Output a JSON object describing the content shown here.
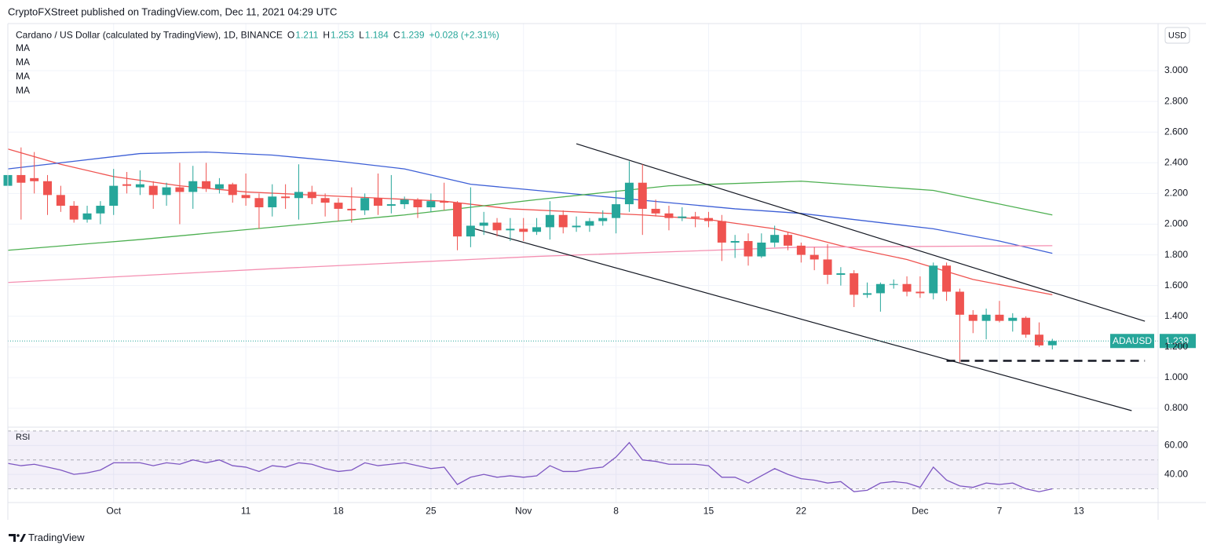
{
  "chart_data": {
    "type": "candlestick",
    "published": "CryptoFXStreet published on TradingView.com, Dec 11, 2021 04:29 UTC",
    "title": "Cardano / US Dollar (calculated by TradingView), 1D, BINANCE",
    "ohlc_letters": [
      "O",
      "H",
      "L",
      "C"
    ],
    "change_label": "+0.028 (+2.31%)",
    "symbol": "ADAUSD",
    "currency": "USD",
    "brand": "TradingView",
    "up_color": "#26a69a",
    "down_color": "#ef5350",
    "x": [
      "2021-09-23",
      "2021-09-24",
      "2021-09-25",
      "2021-09-26",
      "2021-09-27",
      "2021-09-28",
      "2021-09-29",
      "2021-09-30",
      "2021-10-01",
      "2021-10-02",
      "2021-10-03",
      "2021-10-04",
      "2021-10-05",
      "2021-10-06",
      "2021-10-07",
      "2021-10-08",
      "2021-10-09",
      "2021-10-10",
      "2021-10-11",
      "2021-10-12",
      "2021-10-13",
      "2021-10-14",
      "2021-10-15",
      "2021-10-16",
      "2021-10-17",
      "2021-10-18",
      "2021-10-19",
      "2021-10-20",
      "2021-10-21",
      "2021-10-22",
      "2021-10-23",
      "2021-10-24",
      "2021-10-25",
      "2021-10-26",
      "2021-10-27",
      "2021-10-28",
      "2021-10-29",
      "2021-10-30",
      "2021-10-31",
      "2021-11-01",
      "2021-11-02",
      "2021-11-03",
      "2021-11-04",
      "2021-11-05",
      "2021-11-06",
      "2021-11-07",
      "2021-11-08",
      "2021-11-09",
      "2021-11-10",
      "2021-11-11",
      "2021-11-12",
      "2021-11-13",
      "2021-11-14",
      "2021-11-15",
      "2021-11-16",
      "2021-11-17",
      "2021-11-18",
      "2021-11-19",
      "2021-11-20",
      "2021-11-21",
      "2021-11-22",
      "2021-11-23",
      "2021-11-24",
      "2021-11-25",
      "2021-11-26",
      "2021-11-27",
      "2021-11-28",
      "2021-11-29",
      "2021-11-30",
      "2021-12-01",
      "2021-12-02",
      "2021-12-03",
      "2021-12-04",
      "2021-12-05",
      "2021-12-06",
      "2021-12-07",
      "2021-12-08",
      "2021-12-09",
      "2021-12-10",
      "2021-12-11"
    ],
    "open": [
      2.25,
      2.32,
      2.3,
      2.28,
      2.19,
      2.12,
      2.03,
      2.07,
      2.12,
      2.26,
      2.24,
      2.25,
      2.19,
      2.24,
      2.21,
      2.28,
      2.23,
      2.26,
      2.19,
      2.17,
      2.11,
      2.18,
      2.17,
      2.21,
      2.17,
      2.14,
      2.1,
      2.09,
      2.17,
      2.12,
      2.13,
      2.16,
      2.11,
      2.15,
      2.14,
      1.92,
      1.99,
      2.01,
      1.96,
      1.97,
      1.95,
      1.98,
      2.06,
      1.98,
      1.99,
      2.02,
      2.04,
      2.13,
      2.27,
      2.1,
      2.07,
      2.04,
      2.05,
      2.04,
      2.02,
      1.88,
      1.89,
      1.79,
      1.88,
      1.93,
      1.86,
      1.8,
      1.77,
      1.67,
      1.68,
      1.54,
      1.55,
      1.61,
      1.61,
      1.56,
      1.55,
      1.73,
      1.56,
      1.41,
      1.37,
      1.41,
      1.37,
      1.39,
      1.28,
      1.211
    ],
    "high": [
      2.36,
      2.5,
      2.47,
      2.32,
      2.25,
      2.15,
      2.12,
      2.15,
      2.36,
      2.34,
      2.35,
      2.28,
      2.27,
      2.4,
      2.38,
      2.4,
      2.3,
      2.27,
      2.33,
      2.2,
      2.26,
      2.26,
      2.39,
      2.25,
      2.2,
      2.17,
      2.24,
      2.2,
      2.33,
      2.32,
      2.18,
      2.17,
      2.2,
      2.27,
      2.15,
      2.24,
      2.08,
      2.04,
      2.04,
      2.04,
      2.04,
      2.15,
      2.09,
      2.05,
      2.04,
      2.09,
      2.22,
      2.41,
      2.39,
      2.16,
      2.12,
      2.11,
      2.08,
      2.08,
      2.06,
      1.93,
      1.94,
      1.94,
      1.99,
      1.95,
      1.88,
      1.85,
      1.87,
      1.72,
      1.7,
      1.62,
      1.62,
      1.64,
      1.66,
      1.66,
      1.75,
      1.75,
      1.58,
      1.44,
      1.45,
      1.5,
      1.42,
      1.4,
      1.36,
      1.253
    ],
    "low": [
      2.16,
      2.03,
      2.2,
      2.06,
      2.08,
      2.01,
      2.01,
      2.0,
      2.06,
      2.2,
      2.19,
      2.1,
      2.12,
      2.0,
      2.1,
      2.21,
      2.2,
      2.14,
      2.12,
      1.97,
      2.05,
      2.1,
      2.03,
      2.13,
      2.05,
      2.02,
      2.01,
      2.06,
      2.06,
      2.07,
      2.1,
      2.04,
      2.08,
      2.09,
      1.83,
      1.85,
      1.93,
      1.92,
      1.89,
      1.89,
      1.93,
      1.9,
      1.94,
      1.95,
      1.95,
      1.99,
      1.94,
      2.08,
      1.93,
      2.05,
      1.96,
      2.02,
      1.98,
      1.98,
      1.76,
      1.78,
      1.73,
      1.78,
      1.85,
      1.83,
      1.75,
      1.7,
      1.61,
      1.6,
      1.46,
      1.52,
      1.43,
      1.58,
      1.53,
      1.52,
      1.51,
      1.5,
      1.1,
      1.29,
      1.25,
      1.36,
      1.3,
      1.26,
      1.2,
      1.184
    ],
    "close": [
      2.32,
      2.27,
      2.28,
      2.19,
      2.12,
      2.03,
      2.07,
      2.12,
      2.25,
      2.25,
      2.26,
      2.19,
      2.24,
      2.21,
      2.28,
      2.23,
      2.26,
      2.19,
      2.17,
      2.11,
      2.18,
      2.17,
      2.21,
      2.17,
      2.14,
      2.1,
      2.09,
      2.17,
      2.12,
      2.13,
      2.16,
      2.11,
      2.15,
      2.14,
      1.92,
      1.99,
      2.01,
      1.96,
      1.97,
      1.95,
      1.98,
      2.06,
      1.98,
      1.99,
      2.02,
      2.04,
      2.13,
      2.27,
      2.1,
      2.07,
      2.04,
      2.05,
      2.04,
      2.02,
      1.88,
      1.89,
      1.79,
      1.88,
      1.93,
      1.86,
      1.8,
      1.77,
      1.67,
      1.68,
      1.54,
      1.55,
      1.61,
      1.61,
      1.56,
      1.55,
      1.73,
      1.56,
      1.41,
      1.37,
      1.41,
      1.37,
      1.39,
      1.28,
      1.21,
      1.239
    ],
    "xlim": [
      "2021-09-23",
      "2021-12-19"
    ],
    "xticks": [
      {
        "value": "2021-10-01",
        "label": "Oct"
      },
      {
        "value": "2021-10-11",
        "label": "11"
      },
      {
        "value": "2021-10-18",
        "label": "18"
      },
      {
        "value": "2021-10-25",
        "label": "25"
      },
      {
        "value": "2021-11-01",
        "label": "Nov"
      },
      {
        "value": "2021-11-08",
        "label": "8"
      },
      {
        "value": "2021-11-15",
        "label": "15"
      },
      {
        "value": "2021-11-22",
        "label": "22"
      },
      {
        "value": "2021-12-01",
        "label": "Dec"
      },
      {
        "value": "2021-12-07",
        "label": "7"
      },
      {
        "value": "2021-12-13",
        "label": "13"
      }
    ],
    "ylim": [
      0.698,
      3.307
    ],
    "yticks": [
      {
        "value": 0.8,
        "label": "0.800"
      },
      {
        "value": 1.0,
        "label": "1.000"
      },
      {
        "value": 1.2,
        "label": "1.200"
      },
      {
        "value": 1.4,
        "label": "1.400"
      },
      {
        "value": 1.6,
        "label": "1.600"
      },
      {
        "value": 1.8,
        "label": "1.800"
      },
      {
        "value": 2.0,
        "label": "2.000"
      },
      {
        "value": 2.2,
        "label": "2.200"
      },
      {
        "value": 2.4,
        "label": "2.400"
      },
      {
        "value": 2.6,
        "label": "2.600"
      },
      {
        "value": 2.8,
        "label": "2.800"
      },
      {
        "value": 3.0,
        "label": "3.000"
      }
    ],
    "grid": true,
    "series": [
      {
        "name": "MA",
        "color": "#ef5350",
        "x": [
          "2021-09-23",
          "2021-09-27",
          "2021-10-01",
          "2021-10-06",
          "2021-10-11",
          "2021-10-16",
          "2021-10-21",
          "2021-10-26",
          "2021-10-31",
          "2021-11-05",
          "2021-11-10",
          "2021-11-15",
          "2021-11-20",
          "2021-11-25",
          "2021-11-30",
          "2021-12-05",
          "2021-12-11"
        ],
        "values": [
          2.49,
          2.39,
          2.31,
          2.25,
          2.21,
          2.19,
          2.17,
          2.15,
          2.1,
          2.08,
          2.06,
          2.03,
          1.97,
          1.86,
          1.77,
          1.64,
          1.54
        ]
      },
      {
        "name": "MA",
        "color": "#3d5fd6",
        "x": [
          "2021-09-23",
          "2021-09-28",
          "2021-10-03",
          "2021-10-08",
          "2021-10-13",
          "2021-10-18",
          "2021-10-23",
          "2021-10-28",
          "2021-11-02",
          "2021-11-07",
          "2021-11-12",
          "2021-11-17",
          "2021-11-22",
          "2021-11-27",
          "2021-12-02",
          "2021-12-07",
          "2021-12-11"
        ],
        "values": [
          2.36,
          2.41,
          2.46,
          2.47,
          2.45,
          2.41,
          2.36,
          2.26,
          2.22,
          2.18,
          2.14,
          2.1,
          2.07,
          2.02,
          1.97,
          1.89,
          1.81
        ]
      },
      {
        "name": "MA",
        "color": "#4caf50",
        "x": [
          "2021-09-23",
          "2021-10-03",
          "2021-10-13",
          "2021-10-23",
          "2021-11-02",
          "2021-11-12",
          "2021-11-22",
          "2021-12-02",
          "2021-12-11"
        ],
        "values": [
          1.83,
          1.9,
          1.98,
          2.06,
          2.16,
          2.25,
          2.28,
          2.22,
          2.06
        ]
      },
      {
        "name": "MA",
        "color": "#f48fb1",
        "x": [
          "2021-09-23",
          "2021-10-13",
          "2021-11-02",
          "2021-11-22",
          "2021-12-11"
        ],
        "values": [
          1.62,
          1.71,
          1.79,
          1.85,
          1.86
        ]
      }
    ],
    "trendlines": [
      {
        "x": [
          "2021-11-05",
          "2021-12-18"
        ],
        "values": [
          2.524,
          1.368
        ],
        "color": "#131722"
      },
      {
        "x": [
          "2021-10-28",
          "2021-12-17"
        ],
        "values": [
          1.977,
          0.785
        ],
        "color": "#131722"
      }
    ],
    "levels": [
      {
        "x": [
          "2021-12-03",
          "2021-12-18"
        ],
        "values": [
          1.11,
          1.11
        ],
        "color": "#131722",
        "dashed": true
      }
    ],
    "rsi": {
      "title": "RSI",
      "color": "#7e57c2",
      "values": [
        47.6,
        46,
        47,
        45,
        43,
        40,
        41,
        43,
        48,
        48,
        48,
        46,
        48,
        47,
        50,
        48,
        50,
        46,
        45,
        42,
        46,
        45,
        48,
        47,
        44,
        42,
        43,
        48,
        46,
        47,
        48,
        46,
        44,
        45,
        33,
        38,
        40,
        38,
        39,
        38,
        39,
        46,
        42,
        42,
        44,
        45,
        52,
        62,
        50,
        49,
        47,
        47,
        47,
        46,
        38,
        38,
        34,
        39,
        44,
        40,
        37,
        36,
        34,
        35,
        28,
        29,
        34,
        35,
        34,
        31,
        45,
        36,
        32,
        31,
        34,
        33,
        34,
        30,
        28,
        30
      ],
      "ylim": [
        20.5,
        70.5
      ],
      "yticks": [
        {
          "value": 40,
          "label": "40.00"
        },
        {
          "value": 60,
          "label": "60.00"
        }
      ],
      "bands": [
        70,
        50,
        30
      ]
    }
  }
}
